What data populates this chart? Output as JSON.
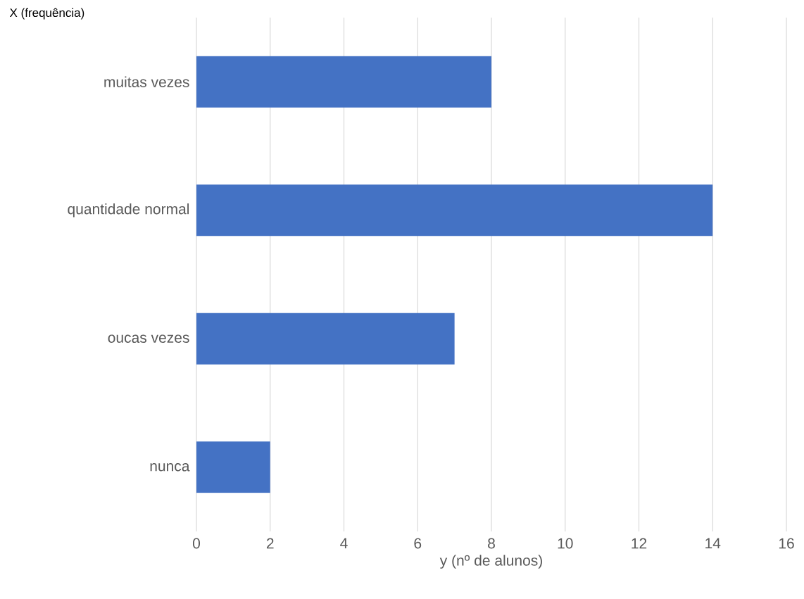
{
  "chart_data": {
    "type": "bar",
    "orientation": "horizontal",
    "ylabel": "X (frequência)",
    "xlabel": "y (nº de alunos)",
    "categories": [
      "muitas vezes",
      "quantidade normal",
      "oucas vezes",
      "nunca"
    ],
    "values": [
      8,
      14,
      7,
      2
    ],
    "color": "#4472c4",
    "xlim": [
      0,
      16
    ],
    "xticks": [
      0,
      2,
      4,
      6,
      8,
      10,
      12,
      14,
      16
    ],
    "grid": "x"
  }
}
